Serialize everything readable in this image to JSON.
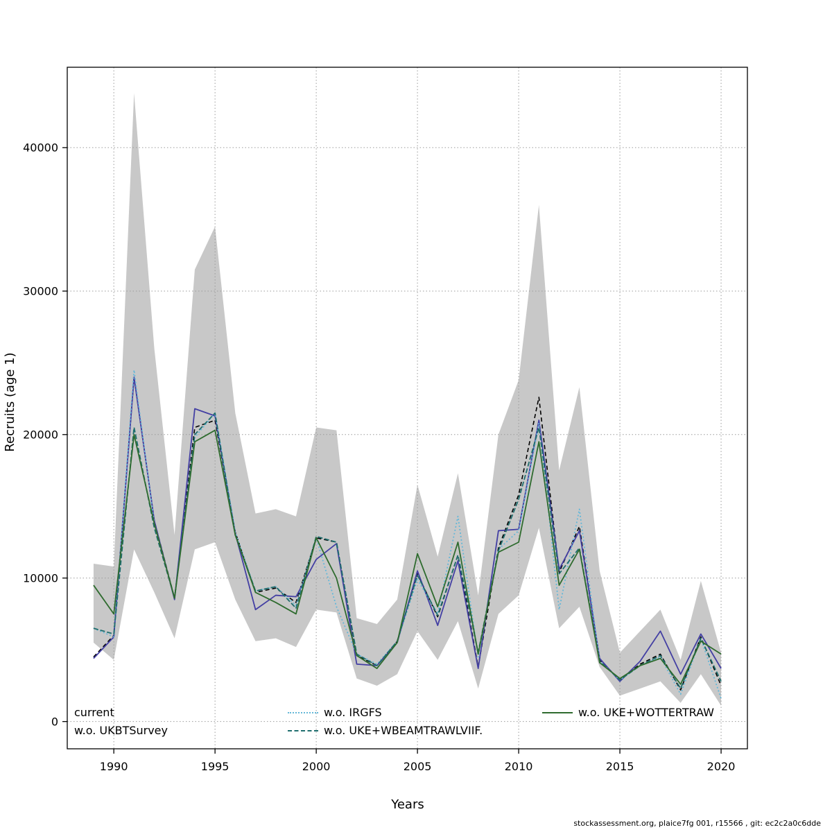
{
  "footer": "stockassessment.org, plaice7fg 001, r15566 , git: ec2c2a0c6dde",
  "chart_data": {
    "type": "line",
    "title": "",
    "xlabel": "Years",
    "ylabel": "Recruits (age 1)",
    "x_ticks": [
      1990,
      1995,
      2000,
      2005,
      2010,
      2015,
      2020
    ],
    "y_ticks": [
      0,
      10000,
      20000,
      30000,
      40000
    ],
    "xlim": [
      1987.7,
      2021.3
    ],
    "ylim": [
      -1900,
      45600
    ],
    "grid": true,
    "years": [
      1989,
      1990,
      1991,
      1992,
      1993,
      1994,
      1995,
      1996,
      1997,
      1998,
      1999,
      2000,
      2001,
      2002,
      2003,
      2004,
      2005,
      2006,
      2007,
      2008,
      2009,
      2010,
      2011,
      2012,
      2013,
      2014,
      2015,
      2016,
      2017,
      2018,
      2019,
      2020
    ],
    "band": {
      "name": "confidence-band",
      "color": "#c8c8c8",
      "lower": [
        5500,
        4300,
        12000,
        9000,
        5800,
        12000,
        12500,
        8500,
        5600,
        5800,
        5200,
        7800,
        7600,
        3000,
        2500,
        3300,
        6300,
        4300,
        7000,
        2300,
        7500,
        8800,
        13500,
        6500,
        8000,
        3800,
        1800,
        2300,
        2800,
        1300,
        3300,
        1100
      ],
      "upper": [
        11000,
        10800,
        43800,
        26000,
        13000,
        31500,
        34500,
        21500,
        14500,
        14800,
        14300,
        20500,
        20300,
        7200,
        6800,
        8500,
        16500,
        11500,
        17300,
        8800,
        20000,
        23800,
        36000,
        17500,
        23300,
        10500,
        4800,
        6300,
        7800,
        4300,
        9800,
        4800
      ]
    },
    "series": [
      {
        "name": "current",
        "color": "#000000",
        "dash": "6 4",
        "width": 1.6,
        "values": [
          4500,
          6000,
          24000,
          14000,
          8600,
          20500,
          21000,
          13200,
          9000,
          9300,
          8300,
          12800,
          12500,
          4600,
          3900,
          5600,
          10300,
          7300,
          11600,
          3800,
          12100,
          15800,
          22600,
          10400,
          13600,
          4300,
          2900,
          4000,
          4700,
          2200,
          5900,
          2500
        ]
      },
      {
        "name": "w.o. UKBTSurvey",
        "color": "#433fa3",
        "dash": "",
        "width": 1.8,
        "values": [
          4400,
          5900,
          24000,
          14000,
          8500,
          21800,
          21300,
          13100,
          7800,
          8800,
          8700,
          11300,
          12400,
          4000,
          3900,
          5500,
          10500,
          6700,
          11200,
          3700,
          13300,
          13400,
          21000,
          10600,
          13300,
          4400,
          2800,
          4200,
          6300,
          3300,
          6100,
          3700
        ]
      },
      {
        "name": "w.o. IRGFS",
        "color": "#64b7d8",
        "dash": "2 3",
        "width": 1.8,
        "values": [
          6500,
          5900,
          24500,
          13800,
          8600,
          19800,
          21500,
          13200,
          9100,
          9400,
          8100,
          12800,
          8000,
          4700,
          4000,
          5600,
          9900,
          7500,
          14300,
          4500,
          12000,
          13300,
          20800,
          7800,
          14800,
          4200,
          2900,
          3900,
          4500,
          1900,
          5800,
          1600
        ]
      },
      {
        "name": "w.o. UKE+WBEAMTRAWLVIIF.",
        "color": "#1f6e6e",
        "dash": "7 3",
        "width": 1.8,
        "values": [
          6500,
          6100,
          20500,
          13500,
          8600,
          20000,
          21500,
          13000,
          9100,
          9400,
          7900,
          12900,
          12500,
          4700,
          3900,
          5600,
          10200,
          7400,
          11600,
          4800,
          11900,
          15500,
          20500,
          10300,
          12100,
          4200,
          2900,
          3900,
          4600,
          2300,
          5800,
          2800
        ]
      },
      {
        "name": "w.o. UKE+WOTTERTRAW",
        "color": "#2e6b2e",
        "dash": "",
        "width": 1.8,
        "values": [
          9500,
          7500,
          20000,
          13800,
          8600,
          19500,
          20300,
          13000,
          9000,
          8300,
          7500,
          12800,
          10000,
          4600,
          3700,
          5500,
          11700,
          8000,
          12500,
          4700,
          11800,
          12500,
          19500,
          9500,
          12000,
          4100,
          3000,
          3900,
          4400,
          2600,
          5600,
          4700
        ]
      }
    ]
  },
  "legend": {
    "entries": [
      {
        "label": "current",
        "color": "#000000",
        "dash": "solid",
        "show_sample": false,
        "col": 0,
        "row": 0
      },
      {
        "label": "w.o. UKBTSurvey",
        "color": "#433fa3",
        "dash": "solid",
        "show_sample": false,
        "col": 0,
        "row": 1
      },
      {
        "label": "w.o. IRGFS",
        "color": "#64b7d8",
        "dash": "dotted",
        "show_sample": true,
        "col": 1,
        "row": 0
      },
      {
        "label": "w.o. UKE+WBEAMTRAWLVIIF.",
        "color": "#1f6e6e",
        "dash": "dashed",
        "show_sample": true,
        "col": 1,
        "row": 1
      },
      {
        "label": "w.o. UKE+WOTTERTRAW",
        "color": "#2e6b2e",
        "dash": "solid",
        "show_sample": true,
        "col": 2,
        "row": 0
      }
    ]
  }
}
